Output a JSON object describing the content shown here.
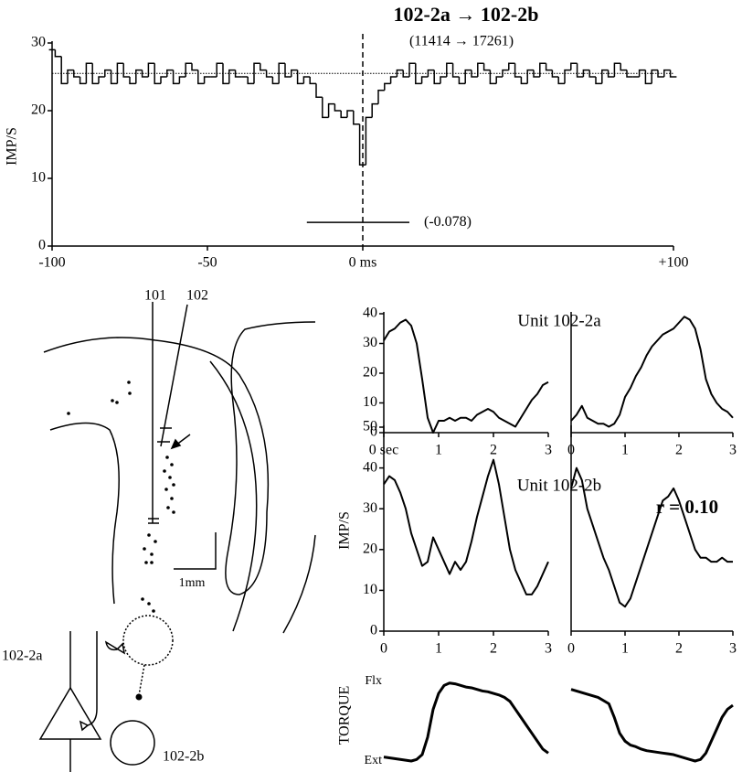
{
  "chart_data": [
    {
      "type": "step",
      "title": "102-2a → 102-2b",
      "subtitle": "(11414 → 17261)",
      "ylabel": "IMP/S",
      "color": "#000000",
      "x": [
        -100,
        -98,
        -96,
        -94,
        -92,
        -90,
        -88,
        -86,
        -84,
        -82,
        -80,
        -78,
        -76,
        -74,
        -72,
        -70,
        -68,
        -66,
        -64,
        -62,
        -60,
        -58,
        -56,
        -54,
        -52,
        -50,
        -48,
        -46,
        -44,
        -42,
        -40,
        -38,
        -36,
        -34,
        -32,
        -30,
        -28,
        -26,
        -24,
        -22,
        -20,
        -18,
        -16,
        -14,
        -12,
        -10,
        -8,
        -6,
        -4,
        -2,
        0,
        2,
        4,
        6,
        8,
        10,
        12,
        14,
        16,
        18,
        20,
        22,
        24,
        26,
        28,
        30,
        32,
        34,
        36,
        38,
        40,
        42,
        44,
        46,
        48,
        50,
        52,
        54,
        56,
        58,
        60,
        62,
        64,
        66,
        68,
        70,
        72,
        74,
        76,
        78,
        80,
        82,
        84,
        86,
        88,
        90,
        92,
        94,
        96,
        98,
        100
      ],
      "values": [
        29,
        28,
        24,
        26,
        25,
        24,
        27,
        24,
        25,
        26,
        24,
        27,
        25,
        24,
        26,
        25,
        27,
        24,
        25,
        26,
        24,
        25,
        27,
        26,
        24,
        25,
        25,
        27,
        24,
        26,
        25,
        25,
        24,
        27,
        26,
        25,
        24,
        27,
        25,
        26,
        24,
        25,
        24,
        22,
        19,
        21,
        20,
        19,
        20,
        18,
        12,
        19,
        21,
        23,
        24,
        25,
        26,
        25,
        27,
        24,
        25,
        26,
        24,
        25,
        27,
        25,
        24,
        26,
        25,
        27,
        26,
        24,
        25,
        26,
        27,
        25,
        24,
        26,
        25,
        27,
        26,
        25,
        24,
        26,
        27,
        25,
        26,
        25,
        24,
        26,
        25,
        27,
        26,
        25,
        25,
        26,
        24,
        26,
        25,
        26,
        25
      ],
      "xlim": [
        -100,
        100
      ],
      "ylim": [
        0,
        30
      ],
      "xticks": [
        -100,
        -50,
        {
          "value": 0,
          "label": "0 ms"
        },
        {
          "value": 100,
          "label": "+100"
        }
      ],
      "yticks": [
        0,
        10,
        20,
        30
      ],
      "reference_y": 25.5,
      "reference_x": 0,
      "bar": {
        "x": [
          -18,
          15
        ],
        "y": 3.5,
        "label": "(-0.078)"
      },
      "axes": true
    },
    {
      "type": "line",
      "title": "Unit 102-2a",
      "color": "#000000",
      "x": [
        0,
        0.1,
        0.2,
        0.3,
        0.4,
        0.5,
        0.6,
        0.7,
        0.8,
        0.9,
        1,
        1.1,
        1.2,
        1.3,
        1.4,
        1.5,
        1.6,
        1.7,
        1.8,
        1.9,
        2,
        2.1,
        2.2,
        2.3,
        2.4,
        2.5,
        2.6,
        2.7,
        2.8,
        2.9,
        3
      ],
      "values": [
        31,
        34,
        35,
        37,
        38,
        36,
        30,
        18,
        5,
        0,
        4,
        4,
        5,
        4,
        5,
        5,
        4,
        6,
        7,
        8,
        7,
        5,
        4,
        3,
        2,
        5,
        8,
        11,
        13,
        16,
        17
      ],
      "xlim": [
        0,
        3
      ],
      "ylim": [
        0,
        40
      ],
      "xticks": [
        {
          "value": 0,
          "label": "0 sec"
        },
        1,
        2,
        3
      ],
      "yticks": [
        0,
        10,
        20,
        30,
        40
      ],
      "axes": true
    },
    {
      "type": "line",
      "color": "#000000",
      "x": [
        0,
        0.1,
        0.2,
        0.3,
        0.4,
        0.5,
        0.6,
        0.7,
        0.8,
        0.9,
        1,
        1.1,
        1.2,
        1.3,
        1.4,
        1.5,
        1.6,
        1.7,
        1.8,
        1.9,
        2,
        2.1,
        2.2,
        2.3,
        2.4,
        2.5,
        2.6,
        2.7,
        2.8,
        2.9,
        3
      ],
      "values": [
        4,
        6,
        9,
        5,
        4,
        3,
        3,
        2,
        3,
        6,
        12,
        15,
        19,
        22,
        26,
        29,
        31,
        33,
        34,
        35,
        37,
        39,
        38,
        35,
        28,
        18,
        13,
        10,
        8,
        7,
        5
      ],
      "xlim": [
        0,
        3
      ],
      "ylim": [
        0,
        40
      ],
      "xticks": [
        0,
        1,
        2,
        3
      ],
      "axes": true
    },
    {
      "type": "line",
      "title": "Unit 102-2b",
      "ylabel": "IMP/S",
      "color": "#000000",
      "x": [
        0,
        0.1,
        0.2,
        0.3,
        0.4,
        0.5,
        0.6,
        0.7,
        0.8,
        0.9,
        1,
        1.1,
        1.2,
        1.3,
        1.4,
        1.5,
        1.6,
        1.7,
        1.8,
        1.9,
        2,
        2.1,
        2.2,
        2.3,
        2.4,
        2.5,
        2.6,
        2.7,
        2.8,
        2.9,
        3
      ],
      "values": [
        36,
        38,
        37,
        34,
        30,
        24,
        20,
        16,
        17,
        23,
        20,
        17,
        14,
        17,
        15,
        17,
        22,
        28,
        33,
        38,
        42,
        36,
        28,
        20,
        15,
        12,
        9,
        9,
        11,
        14,
        17
      ],
      "xlim": [
        0,
        3
      ],
      "ylim": [
        0,
        50
      ],
      "xticks": [
        0,
        1,
        2,
        3
      ],
      "yticks": [
        0,
        10,
        20,
        30,
        40,
        50
      ],
      "axes": true
    },
    {
      "type": "line",
      "annotation": "r = 0.10",
      "color": "#000000",
      "x": [
        0,
        0.1,
        0.2,
        0.3,
        0.4,
        0.5,
        0.6,
        0.7,
        0.8,
        0.9,
        1,
        1.1,
        1.2,
        1.3,
        1.4,
        1.5,
        1.6,
        1.7,
        1.8,
        1.9,
        2,
        2.1,
        2.2,
        2.3,
        2.4,
        2.5,
        2.6,
        2.7,
        2.8,
        2.9,
        3
      ],
      "values": [
        35,
        40,
        37,
        30,
        26,
        22,
        18,
        15,
        11,
        7,
        6,
        8,
        12,
        16,
        20,
        24,
        28,
        32,
        33,
        35,
        32,
        28,
        24,
        20,
        18,
        18,
        17,
        17,
        18,
        17,
        17
      ],
      "xlim": [
        0,
        3
      ],
      "ylim": [
        0,
        50
      ],
      "xticks": [
        0,
        1,
        2,
        3
      ],
      "axes": true
    },
    {
      "type": "line",
      "ylabel": "TORQUE",
      "color": "#000000",
      "x": [
        0,
        0.1,
        0.2,
        0.3,
        0.4,
        0.5,
        0.6,
        0.7,
        0.8,
        0.9,
        1,
        1.1,
        1.2,
        1.3,
        1.4,
        1.5,
        1.6,
        1.7,
        1.8,
        1.9,
        2,
        2.1,
        2.2,
        2.3,
        2.4,
        2.5,
        2.6,
        2.7,
        2.8,
        2.9,
        3
      ],
      "values": [
        0.05,
        0.04,
        0.03,
        0.02,
        0.01,
        0,
        0.02,
        0.08,
        0.3,
        0.65,
        0.85,
        0.95,
        0.98,
        0.97,
        0.95,
        0.93,
        0.92,
        0.9,
        0.88,
        0.87,
        0.85,
        0.83,
        0.8,
        0.75,
        0.65,
        0.55,
        0.45,
        0.35,
        0.25,
        0.15,
        0.1
      ],
      "xlim": [
        0,
        3
      ],
      "ylim": [
        0,
        1
      ],
      "yticks": [
        {
          "value": 1,
          "label": "Flx"
        },
        {
          "value": 0,
          "label": "Ext"
        }
      ],
      "axes": false
    },
    {
      "type": "line",
      "color": "#000000",
      "x": [
        0,
        0.1,
        0.2,
        0.3,
        0.4,
        0.5,
        0.6,
        0.7,
        0.8,
        0.9,
        1,
        1.1,
        1.2,
        1.3,
        1.4,
        1.5,
        1.6,
        1.7,
        1.8,
        1.9,
        2,
        2.1,
        2.2,
        2.3,
        2.4,
        2.5,
        2.6,
        2.7,
        2.8,
        2.9,
        3
      ],
      "values": [
        0.9,
        0.88,
        0.86,
        0.84,
        0.82,
        0.8,
        0.76,
        0.72,
        0.55,
        0.35,
        0.25,
        0.2,
        0.18,
        0.15,
        0.13,
        0.12,
        0.11,
        0.1,
        0.09,
        0.08,
        0.06,
        0.04,
        0.02,
        0,
        0.02,
        0.1,
        0.25,
        0.4,
        0.55,
        0.65,
        0.7
      ],
      "xlim": [
        0,
        3
      ],
      "ylim": [
        0,
        1
      ],
      "axes": false
    }
  ],
  "diagram": {
    "electrodes": [
      "101",
      "102"
    ],
    "scale_bar": "1mm",
    "neurons": [
      "102-2a",
      "102-2b"
    ]
  }
}
